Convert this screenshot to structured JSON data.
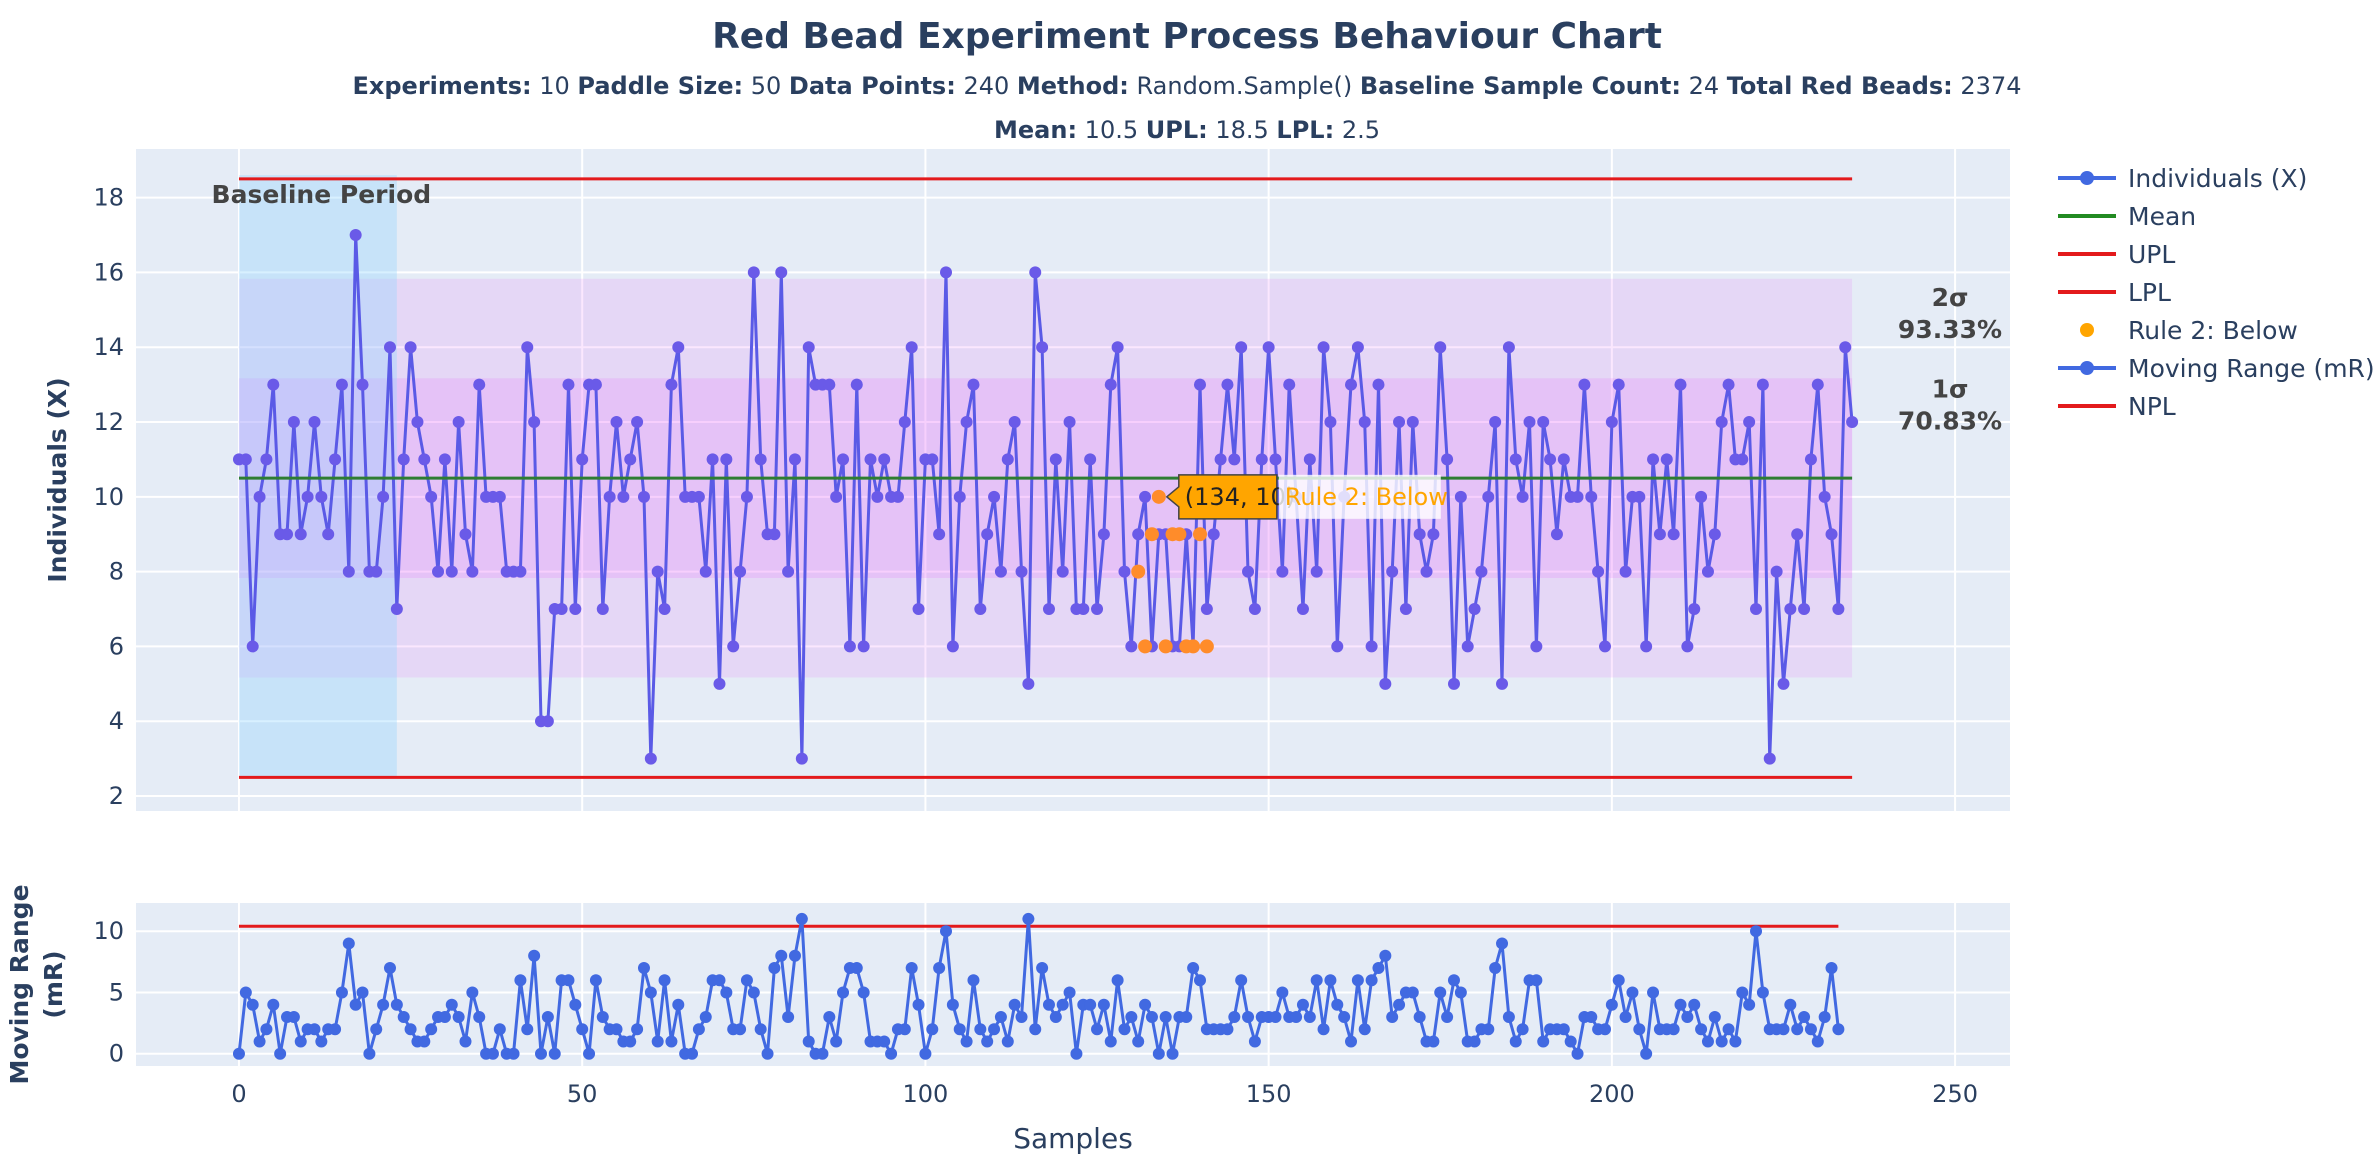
{
  "title": "Red Bead Experiment Process Behaviour Chart",
  "subtitle_line1": [
    {
      "label": "Experiments:",
      "value": "10"
    },
    {
      "label": "Paddle Size:",
      "value": "50"
    },
    {
      "label": "Data Points:",
      "value": "240"
    },
    {
      "label": "Method:",
      "value": "Random.Sample()"
    },
    {
      "label": "Baseline Sample Count:",
      "value": "24"
    },
    {
      "label": "Total Red Beads:",
      "value": "2374"
    }
  ],
  "subtitle_line2": [
    {
      "label": "Mean:",
      "value": "10.5"
    },
    {
      "label": "UPL:",
      "value": "18.5"
    },
    {
      "label": "LPL:",
      "value": "2.5"
    }
  ],
  "legend": [
    {
      "name": "Individuals (X)",
      "kind": "line-marker",
      "color": "#4169e1"
    },
    {
      "name": "Mean",
      "kind": "line",
      "color": "#228b22"
    },
    {
      "name": "UPL",
      "kind": "line",
      "color": "#e31a1c"
    },
    {
      "name": "LPL",
      "kind": "line",
      "color": "#e31a1c"
    },
    {
      "name": "Rule 2: Below",
      "kind": "marker",
      "color": "#ffa500"
    },
    {
      "name": "Moving Range (mR)",
      "kind": "line-marker",
      "color": "#4169e1"
    },
    {
      "name": "NPL",
      "kind": "line",
      "color": "#e31a1c"
    }
  ],
  "annotations": {
    "baseline": "Baseline Period",
    "sigma2_label": "2σ",
    "sigma2_pct": "93.33%",
    "sigma1_label": "1σ",
    "sigma1_pct": "70.83%",
    "hover_point": "(134, 10)",
    "hover_name": "Rule 2: Below"
  },
  "chart_data": [
    {
      "type": "line",
      "ylabel": "Individuals (X)",
      "xlabel": "",
      "xlim": [
        -15,
        258
      ],
      "ylim": [
        1.6,
        19.3
      ],
      "x_ticks": [
        0,
        50,
        100,
        150,
        200,
        250
      ],
      "y_ticks": [
        2,
        4,
        6,
        8,
        10,
        12,
        14,
        16,
        18
      ],
      "grid": true,
      "mean": 10.5,
      "upl": 18.5,
      "lpl": 2.5,
      "sigma_bands": [
        [
          7.83,
          13.17
        ],
        [
          5.17,
          15.83
        ]
      ],
      "baseline_range": [
        0,
        23
      ],
      "series": [
        {
          "name": "Individuals (X)",
          "x_start": 0,
          "values": [
            11,
            11,
            6,
            10,
            11,
            13,
            9,
            9,
            12,
            9,
            10,
            12,
            10,
            9,
            11,
            13,
            8,
            17,
            13,
            8,
            8,
            10,
            14,
            7,
            11,
            14,
            12,
            11,
            10,
            8,
            11,
            8,
            12,
            9,
            8,
            13,
            10,
            10,
            10,
            8,
            8,
            8,
            14,
            12,
            4,
            4,
            7,
            7,
            13,
            7,
            11,
            13,
            13,
            7,
            10,
            12,
            10,
            11,
            12,
            10,
            3,
            8,
            7,
            13,
            14,
            10,
            10,
            10,
            8,
            11,
            5,
            11,
            6,
            8,
            10,
            16,
            11,
            9,
            9,
            16,
            8,
            11,
            3,
            14,
            13,
            13,
            13,
            10,
            11,
            6,
            13,
            6,
            11,
            10,
            11,
            10,
            10,
            12,
            14,
            7,
            11,
            11,
            9,
            16,
            6,
            10,
            12,
            13,
            7,
            9,
            10,
            8,
            11,
            12,
            8,
            5,
            16,
            14,
            7,
            11,
            8,
            12,
            7,
            7,
            11,
            7,
            9,
            13,
            14,
            8,
            6,
            9,
            10,
            6,
            9,
            9,
            6,
            6,
            9,
            6,
            13,
            7,
            9,
            11,
            13,
            11,
            14,
            8,
            7,
            11,
            14,
            11,
            8,
            13,
            10,
            7,
            11,
            8,
            14,
            12,
            6,
            10,
            13,
            14,
            12,
            6,
            13,
            5,
            8,
            12,
            7,
            12,
            9,
            8,
            9,
            14,
            11,
            5,
            10,
            6,
            7,
            8,
            10,
            12,
            5,
            14,
            11,
            10,
            12,
            6,
            12,
            11,
            9,
            11,
            10,
            10,
            13,
            10,
            8,
            6,
            12,
            13,
            8,
            10,
            10,
            6,
            11,
            9,
            11,
            9,
            13,
            6,
            7,
            10,
            8,
            9,
            12,
            13,
            11,
            11,
            12,
            7,
            13,
            3,
            8,
            5,
            7,
            9,
            7,
            11,
            13,
            10,
            9,
            7,
            14,
            12
          ]
        },
        {
          "name": "Rule 2: Below",
          "points": [
            [
              131,
              8
            ],
            [
              132,
              6
            ],
            [
              133,
              9
            ],
            [
              134,
              10
            ],
            [
              135,
              6
            ],
            [
              136,
              9
            ],
            [
              137,
              9
            ],
            [
              138,
              6
            ],
            [
              139,
              6
            ],
            [
              140,
              9
            ],
            [
              141,
              6
            ]
          ]
        }
      ]
    },
    {
      "type": "line",
      "ylabel": "Moving Range (mR)",
      "xlabel": "Samples",
      "xlim": [
        -15,
        258
      ],
      "ylim": [
        -1,
        12.3
      ],
      "x_ticks": [
        0,
        50,
        100,
        150,
        200,
        250
      ],
      "y_ticks": [
        0,
        5,
        10
      ],
      "grid": true,
      "npl": 10.4,
      "series": [
        {
          "name": "Moving Range (mR)",
          "x_start": 0,
          "values": [
            0,
            5,
            4,
            1,
            2,
            4,
            0,
            3,
            3,
            1,
            2,
            2,
            1,
            2,
            2,
            5,
            9,
            4,
            5,
            0,
            2,
            4,
            7,
            4,
            3,
            2,
            1,
            1,
            2,
            3,
            3,
            4,
            3,
            1,
            5,
            3,
            0,
            0,
            2,
            0,
            0,
            6,
            2,
            8,
            0,
            3,
            0,
            6,
            6,
            4,
            2,
            0,
            6,
            3,
            2,
            2,
            1,
            1,
            2,
            7,
            5,
            1,
            6,
            1,
            4,
            0,
            0,
            2,
            3,
            6,
            6,
            5,
            2,
            2,
            6,
            5,
            2,
            0,
            7,
            8,
            3,
            8,
            11,
            1,
            0,
            0,
            3,
            1,
            5,
            7,
            7,
            5,
            1,
            1,
            1,
            0,
            2,
            2,
            7,
            4,
            0,
            2,
            7,
            10,
            4,
            2,
            1,
            6,
            2,
            1,
            2,
            3,
            1,
            4,
            3,
            11,
            2,
            7,
            4,
            3,
            4,
            5,
            0,
            4,
            4,
            2,
            4,
            1,
            6,
            2,
            3,
            1,
            4,
            3,
            0,
            3,
            0,
            3,
            3,
            7,
            6,
            2,
            2,
            2,
            2,
            3,
            6,
            3,
            1,
            3,
            3,
            3,
            5,
            3,
            3,
            4,
            3,
            6,
            2,
            6,
            4,
            3,
            1,
            6,
            2,
            6,
            7,
            8,
            3,
            4,
            5,
            5,
            3,
            1,
            1,
            5,
            3,
            6,
            5,
            1,
            1,
            2,
            2,
            7,
            9,
            3,
            1,
            2,
            6,
            6,
            1,
            2,
            2,
            2,
            1,
            0,
            3,
            3,
            2,
            2,
            4,
            6,
            3,
            5,
            2,
            0,
            5,
            2,
            2,
            2,
            4,
            3,
            4,
            2,
            1,
            3,
            1,
            2,
            1,
            5,
            4,
            10,
            5,
            2,
            2,
            2,
            4,
            2,
            3,
            2,
            1,
            3,
            7,
            2
          ]
        }
      ]
    }
  ]
}
